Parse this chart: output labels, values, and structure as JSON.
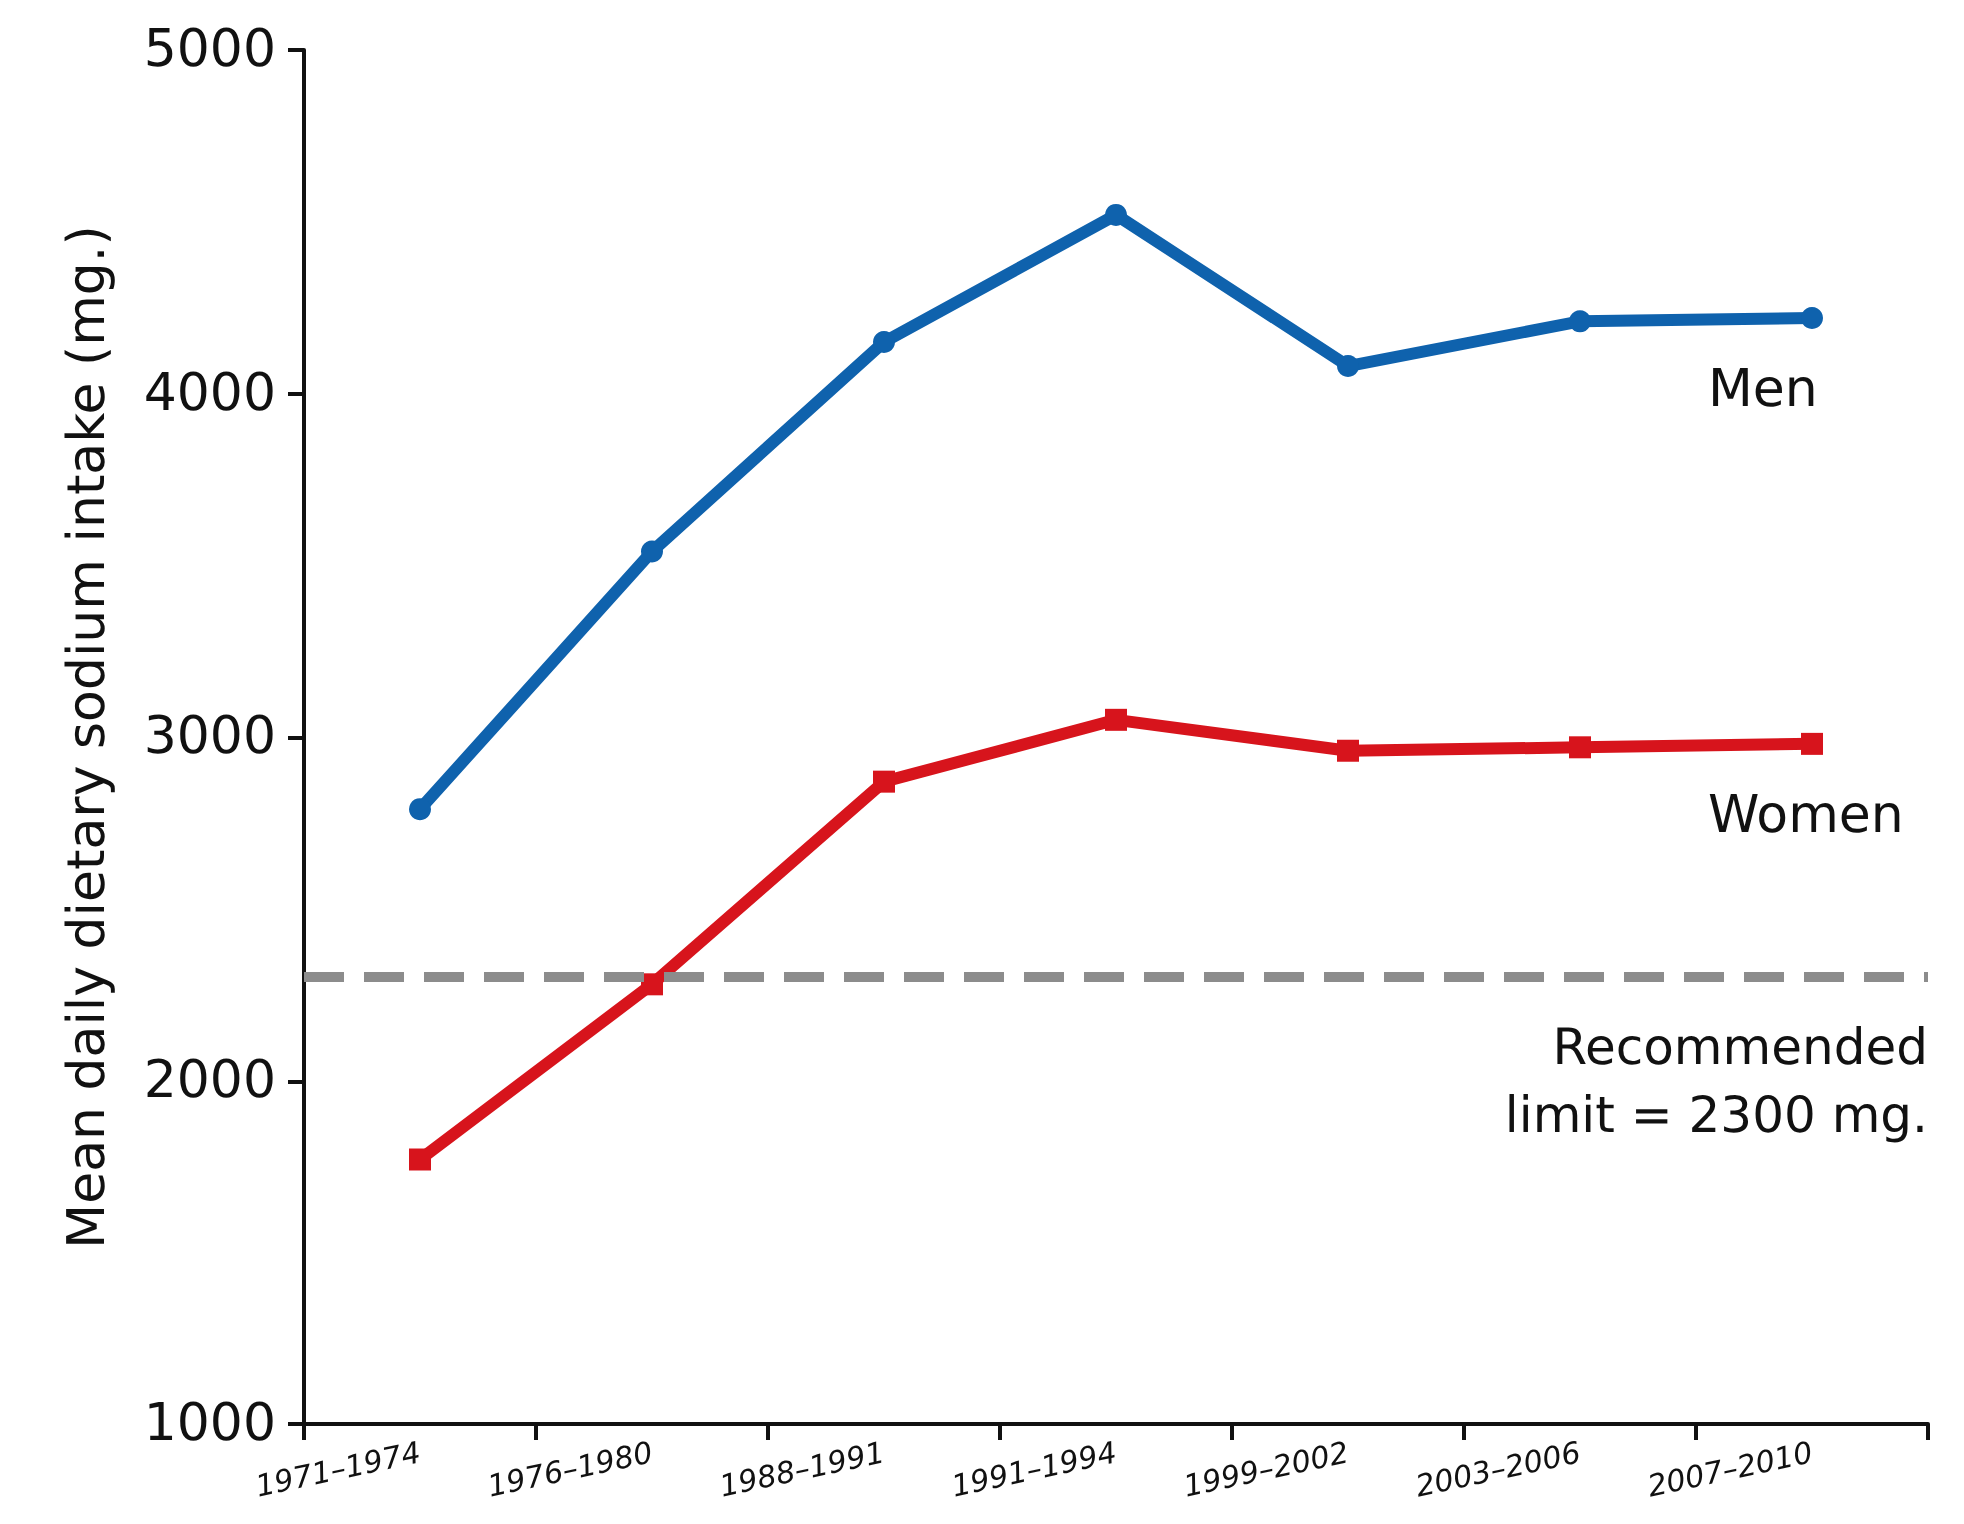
{
  "chart_data": {
    "type": "line",
    "ylabel": "Mean daily dietary sodium intake (mg.)",
    "categories": [
      "1971–1974",
      "1976–1980",
      "1988–1991",
      "1991–1994",
      "1999–2002",
      "2003–2006",
      "2007–2010"
    ],
    "series": [
      {
        "name": "Men",
        "color": "#0f62ad",
        "marker": "circle",
        "values": [
          2790,
          3540,
          4150,
          4520,
          4080,
          4210,
          4220
        ]
      },
      {
        "name": "Women",
        "color": "#d7141c",
        "marker": "square",
        "values": [
          1770,
          2280,
          2870,
          3050,
          2960,
          2970,
          2980
        ]
      }
    ],
    "ylim": [
      1000,
      5000
    ],
    "yticks": [
      1000,
      2000,
      3000,
      4000,
      5000
    ],
    "ref_lines": [
      {
        "axis": "y",
        "value": 2300,
        "label": "Recommended\nlimit = 2300 mg.",
        "color": "#8c8c8c",
        "line_style": "dashed"
      }
    ],
    "grid": false,
    "legend": false,
    "line_style": "solid"
  }
}
